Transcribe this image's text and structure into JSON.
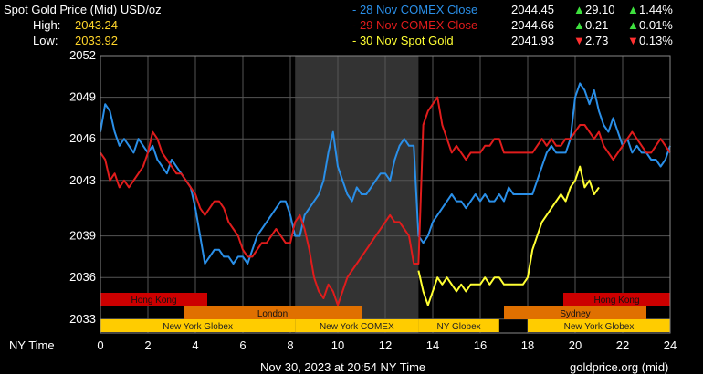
{
  "header": {
    "title": "Spot Gold Price (Mid) USD/oz",
    "high_label": "High:",
    "high_value": "2043.24",
    "low_label": "Low:",
    "low_value": "2033.92"
  },
  "legend": [
    {
      "label": "- 28 Nov COMEX Close",
      "price": "2044.45",
      "change": "29.10",
      "change_dir": "up",
      "percent": "1.44%",
      "percent_dir": "up",
      "color": "#2a8fe8"
    },
    {
      "label": "- 29 Nov COMEX Close",
      "price": "2044.66",
      "change": "0.21",
      "change_dir": "up",
      "percent": "0.01%",
      "percent_dir": "up",
      "color": "#e01c1c"
    },
    {
      "label": "- 30 Nov Spot Gold",
      "price": "2041.93",
      "change": "2.73",
      "change_dir": "down",
      "percent": "0.13%",
      "percent_dir": "down",
      "color": "#ffff33"
    }
  ],
  "footer": {
    "timestamp": "Nov 30, 2023 at 20:54 NY Time",
    "source": "goldprice.org (mid)"
  },
  "chart_data": {
    "type": "line",
    "xlabel": "NY Time",
    "x_ticks": [
      0,
      2,
      4,
      6,
      8,
      10,
      12,
      14,
      16,
      18,
      20,
      22,
      24
    ],
    "y_ticks": [
      "2052",
      "2049",
      "2046",
      "2043",
      "2039",
      "2036",
      "2033"
    ],
    "y_tick_values": [
      2052,
      2049,
      2046,
      2043,
      2039,
      2036,
      2033
    ],
    "xlim": [
      0,
      24
    ],
    "ylim": [
      2032,
      2052
    ],
    "grid": true,
    "shaded_range": [
      8.2,
      13.4
    ],
    "sessions": [
      {
        "name": "Hong Kong",
        "start": 0,
        "end": 4.5,
        "row": 0,
        "color": "#cc0000"
      },
      {
        "name": "Hong Kong",
        "start": 19.5,
        "end": 24,
        "row": 0,
        "color": "#cc0000"
      },
      {
        "name": "London",
        "start": 3.5,
        "end": 11,
        "row": 1,
        "color": "#e07000"
      },
      {
        "name": "Sydney",
        "start": 17,
        "end": 23,
        "row": 1,
        "color": "#e07000"
      },
      {
        "name": "New York Globex",
        "start": 0,
        "end": 8.2,
        "row": 2,
        "color": "#ffcc00"
      },
      {
        "name": "New York COMEX",
        "start": 8.2,
        "end": 13.4,
        "row": 2,
        "color": "#ffcc00"
      },
      {
        "name": "NY Globex",
        "start": 13.4,
        "end": 16.8,
        "row": 2,
        "color": "#ffcc00"
      },
      {
        "name": "New York Globex",
        "start": 18,
        "end": 24,
        "row": 2,
        "color": "#ffcc00"
      }
    ],
    "series": [
      {
        "name": "28 Nov COMEX Close",
        "color": "#2a8fe8",
        "x": [
          0,
          0.2,
          0.4,
          0.6,
          0.8,
          1,
          1.2,
          1.4,
          1.6,
          1.8,
          2,
          2.2,
          2.4,
          2.6,
          2.8,
          3,
          3.2,
          3.4,
          3.6,
          3.8,
          4,
          4.2,
          4.4,
          4.6,
          4.8,
          5,
          5.2,
          5.4,
          5.6,
          5.8,
          6,
          6.2,
          6.4,
          6.6,
          6.8,
          7,
          7.2,
          7.4,
          7.6,
          7.8,
          8,
          8.2,
          8.4,
          8.6,
          8.8,
          9,
          9.2,
          9.4,
          9.6,
          9.8,
          10,
          10.2,
          10.4,
          10.6,
          10.8,
          11,
          11.2,
          11.4,
          11.6,
          11.8,
          12,
          12.2,
          12.4,
          12.6,
          12.8,
          13,
          13.2,
          13.4,
          13.6,
          13.8,
          14,
          14.2,
          14.4,
          14.6,
          14.8,
          15,
          15.2,
          15.4,
          15.6,
          15.8,
          16,
          16.2,
          16.4,
          16.6,
          16.8,
          17,
          17.2,
          17.4,
          17.6,
          17.8,
          18,
          18.2,
          18.4,
          18.6,
          18.8,
          19,
          19.2,
          19.4,
          19.6,
          19.8,
          20,
          20.2,
          20.4,
          20.6,
          20.8,
          21,
          21.2,
          21.4,
          21.6,
          21.8,
          22,
          22.2,
          22.4,
          22.6,
          22.8,
          23,
          23.2,
          23.4,
          23.6,
          23.8,
          24
        ],
        "y": [
          2046.5,
          2048.5,
          2048,
          2046.5,
          2045.5,
          2046,
          2045.5,
          2045,
          2046,
          2045.5,
          2045,
          2045.5,
          2044.5,
          2044,
          2043.5,
          2044.5,
          2044,
          2043.5,
          2043,
          2042.5,
          2041,
          2039,
          2037,
          2037.5,
          2038,
          2038,
          2037.5,
          2037.5,
          2037,
          2037.5,
          2037.5,
          2037,
          2038,
          2039,
          2039.5,
          2040,
          2040.5,
          2041,
          2041.5,
          2041.5,
          2040.5,
          2039,
          2039,
          2040.5,
          2041,
          2041.5,
          2042,
          2043,
          2045,
          2046.5,
          2044,
          2043,
          2042,
          2041.5,
          2042.5,
          2042,
          2042,
          2042.5,
          2043,
          2043.5,
          2043.5,
          2043,
          2044.5,
          2045.5,
          2046,
          2045.5,
          2045.5,
          2039,
          2038.5,
          2039,
          2040,
          2040.5,
          2041,
          2041.5,
          2042,
          2041.5,
          2041.5,
          2041,
          2041.5,
          2042,
          2041.5,
          2042,
          2041.5,
          2041.5,
          2042,
          2041.5,
          2042.5,
          2042,
          2042,
          2042,
          2042,
          2042,
          2043,
          2044,
          2045,
          2045.5,
          2045,
          2045,
          2045,
          2046,
          2049,
          2050,
          2049.5,
          2048.5,
          2049.5,
          2048,
          2047,
          2046.5,
          2047.5,
          2046.5,
          2045.5,
          2046,
          2045,
          2045.5,
          2045,
          2045,
          2044.5,
          2044.5,
          2044,
          2044.5,
          2045.5
        ]
      },
      {
        "name": "29 Nov COMEX Close",
        "color": "#e01c1c",
        "x": [
          0,
          0.2,
          0.4,
          0.6,
          0.8,
          1,
          1.2,
          1.4,
          1.6,
          1.8,
          2,
          2.2,
          2.4,
          2.6,
          2.8,
          3,
          3.2,
          3.4,
          3.6,
          3.8,
          4,
          4.2,
          4.4,
          4.6,
          4.8,
          5,
          5.2,
          5.4,
          5.6,
          5.8,
          6,
          6.2,
          6.4,
          6.6,
          6.8,
          7,
          7.2,
          7.4,
          7.6,
          7.8,
          8,
          8.2,
          8.4,
          8.6,
          8.8,
          9,
          9.2,
          9.4,
          9.6,
          9.8,
          10,
          10.2,
          10.4,
          10.6,
          10.8,
          11,
          11.2,
          11.4,
          11.6,
          11.8,
          12,
          12.2,
          12.4,
          12.6,
          12.8,
          13,
          13.2,
          13.4,
          13.6,
          13.8,
          14,
          14.2,
          14.4,
          14.6,
          14.8,
          15,
          15.2,
          15.4,
          15.6,
          15.8,
          16,
          16.2,
          16.4,
          16.6,
          16.8,
          17,
          17.2,
          17.4,
          17.6,
          17.8,
          18,
          18.2,
          18.4,
          18.6,
          18.8,
          19,
          19.2,
          19.4,
          19.6,
          19.8,
          20,
          20.2,
          20.4,
          20.6,
          20.8,
          21,
          21.2,
          21.4,
          21.6,
          21.8,
          22,
          22.2,
          22.4,
          22.6,
          22.8,
          23,
          23.2,
          23.4,
          23.6,
          23.8,
          24
        ],
        "y": [
          2045,
          2044.5,
          2043,
          2043.5,
          2042.5,
          2043,
          2042.5,
          2043,
          2043.5,
          2044,
          2045,
          2046.5,
          2046,
          2045,
          2044.5,
          2044,
          2043.5,
          2043.5,
          2043,
          2042.5,
          2042,
          2041,
          2040.5,
          2041,
          2041.5,
          2041.5,
          2041,
          2040,
          2039.5,
          2039,
          2038,
          2037.5,
          2037.5,
          2038,
          2038.5,
          2038.5,
          2039,
          2039.5,
          2039,
          2038.5,
          2038.5,
          2040,
          2040.5,
          2039.5,
          2038,
          2036,
          2035,
          2034.5,
          2035.5,
          2035,
          2034,
          2035,
          2036,
          2036.5,
          2037,
          2037.5,
          2038,
          2038.5,
          2039,
          2039.5,
          2040,
          2040.5,
          2040,
          2040,
          2039.5,
          2039,
          2037,
          2037,
          2047,
          2048,
          2048.5,
          2049,
          2047,
          2046,
          2045,
          2045.5,
          2045,
          2044.5,
          2045,
          2045,
          2045,
          2045.5,
          2045.5,
          2046,
          2046,
          2045,
          2045,
          2045,
          2045,
          2045,
          2045,
          2045,
          2045.5,
          2046,
          2045.5,
          2046,
          2045.5,
          2045.5,
          2046,
          2046,
          2046.5,
          2047,
          2047,
          2046.5,
          2046,
          2046.5,
          2045.5,
          2045,
          2044.5,
          2045,
          2045.5,
          2046,
          2046.5,
          2046,
          2045.5,
          2045,
          2045,
          2045.5,
          2046,
          2045.5,
          2045
        ]
      },
      {
        "name": "30 Nov Spot Gold",
        "color": "#ffff33",
        "x": [
          13.4,
          13.6,
          13.8,
          14,
          14.2,
          14.4,
          14.6,
          14.8,
          15,
          15.2,
          15.4,
          15.6,
          15.8,
          16,
          16.2,
          16.4,
          16.6,
          16.8,
          17,
          17.2,
          17.4,
          17.6,
          17.8,
          18,
          18.2,
          18.4,
          18.6,
          18.8,
          19,
          19.2,
          19.4,
          19.6,
          19.8,
          20,
          20.2,
          20.4,
          20.6,
          20.8,
          21
        ],
        "y": [
          2036.5,
          2035,
          2034,
          2035,
          2036,
          2035.5,
          2036,
          2035.5,
          2035,
          2035.5,
          2035,
          2035.5,
          2035.5,
          2035.5,
          2036,
          2035.5,
          2036,
          2036,
          2035.5,
          2035.5,
          2035.5,
          2035.5,
          2035.5,
          2036,
          2038,
          2039,
          2040,
          2040.5,
          2041,
          2041.5,
          2042,
          2041.5,
          2042.5,
          2043,
          2044,
          2042.5,
          2043,
          2042,
          2042.5
        ]
      }
    ]
  }
}
